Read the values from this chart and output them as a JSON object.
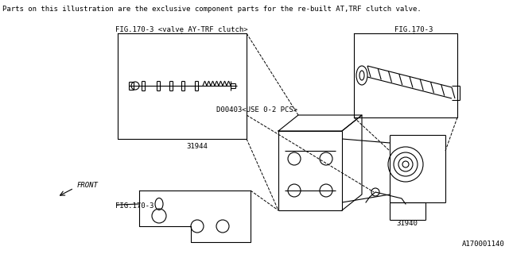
{
  "bg_color": "#ffffff",
  "line_color": "#000000",
  "title_text": "Parts on this illustration are the exclusive component parts for the re-built AT,TRF clutch valve.",
  "label_fig170_3_left": "FIG.170-3 <valve AY-TRF clutch>",
  "label_fig170_3_right": "FIG.170-3",
  "label_fig170_3_bottom": "FIG.170-3",
  "label_d00403": "D00403<USE 0-2 PCS>",
  "label_31944": "31944",
  "label_31940": "31940",
  "label_front": "FRONT",
  "label_code": "A170001140",
  "title_fontsize": 6.5,
  "label_fontsize": 6.5,
  "code_fontsize": 6.5
}
